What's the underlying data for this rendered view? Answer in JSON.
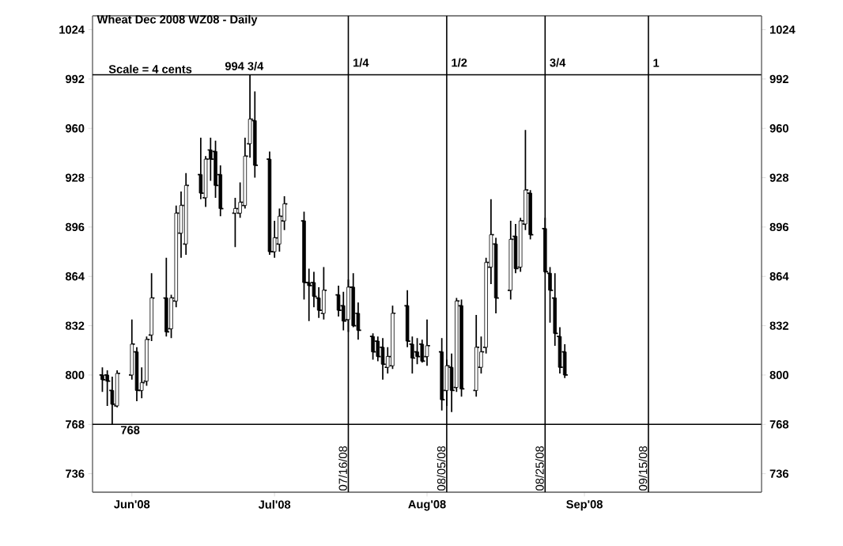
{
  "chart_data": {
    "type": "candlestick",
    "title": "Wheat Dec 2008 WZ08 - Daily",
    "color": "#000000",
    "annotations": [
      "Scale = 4 cents",
      {
        "text": "994 3/4",
        "x": "2008-06-20",
        "y": 994.75
      },
      {
        "text": "1/4",
        "x": "2008-07-16",
        "y": 997
      },
      {
        "text": "1/2",
        "x": "2008-08-05",
        "y": 997
      },
      {
        "text": "3/4",
        "x": "2008-08-25",
        "y": 997
      },
      {
        "text": "1",
        "x": "2008-09-15",
        "y": 997
      }
    ],
    "x": [
      "2008-05-27",
      "2008-05-28",
      "2008-05-29",
      "2008-05-30",
      "2008-06-02",
      "2008-06-03",
      "2008-06-04",
      "2008-06-05",
      "2008-06-06",
      "2008-06-09",
      "2008-06-10",
      "2008-06-11",
      "2008-06-12",
      "2008-06-13",
      "2008-06-16",
      "2008-06-17",
      "2008-06-18",
      "2008-06-19",
      "2008-06-20",
      "2008-06-23",
      "2008-06-24",
      "2008-06-25",
      "2008-06-26",
      "2008-06-27",
      "2008-06-30",
      "2008-07-01",
      "2008-07-02",
      "2008-07-03",
      "2008-07-07",
      "2008-07-08",
      "2008-07-09",
      "2008-07-10",
      "2008-07-11",
      "2008-07-14",
      "2008-07-15",
      "2008-07-16",
      "2008-07-17",
      "2008-07-18",
      "2008-07-21",
      "2008-07-22",
      "2008-07-23",
      "2008-07-24",
      "2008-07-25",
      "2008-07-28",
      "2008-07-29",
      "2008-07-30",
      "2008-07-31",
      "2008-08-01",
      "2008-08-04",
      "2008-08-05",
      "2008-08-06",
      "2008-08-07",
      "2008-08-08",
      "2008-08-11",
      "2008-08-12",
      "2008-08-13",
      "2008-08-14",
      "2008-08-15",
      "2008-08-18",
      "2008-08-19",
      "2008-08-20",
      "2008-08-21",
      "2008-08-22",
      "2008-08-25",
      "2008-08-26",
      "2008-08-27",
      "2008-08-28",
      "2008-08-29"
    ],
    "ohlc": [
      [
        800,
        805,
        789,
        797
      ],
      [
        800,
        803,
        780,
        796
      ],
      [
        790,
        799,
        768,
        781
      ],
      [
        780,
        803,
        779,
        801
      ],
      [
        800,
        836,
        797,
        820
      ],
      [
        815,
        818,
        783,
        790
      ],
      [
        790,
        805,
        785,
        795
      ],
      [
        796,
        825,
        793,
        823
      ],
      [
        826,
        866,
        822,
        850
      ],
      [
        850,
        876,
        825,
        828
      ],
      [
        830,
        852,
        824,
        850
      ],
      [
        848,
        910,
        844,
        905
      ],
      [
        892,
        919,
        876,
        910
      ],
      [
        885,
        931,
        878,
        923
      ],
      [
        930,
        954,
        914,
        918
      ],
      [
        915,
        942,
        909,
        940
      ],
      [
        946,
        954,
        926,
        940
      ],
      [
        945,
        952,
        915,
        923
      ],
      [
        930,
        936,
        903,
        908
      ],
      [
        905,
        915,
        883,
        908
      ],
      [
        905,
        925,
        902,
        912
      ],
      [
        910,
        954,
        908,
        942
      ],
      [
        950,
        994.75,
        941,
        966
      ],
      [
        965,
        984,
        928,
        936
      ],
      [
        940,
        945,
        878,
        880
      ],
      [
        880,
        900,
        876,
        889
      ],
      [
        885,
        908,
        880,
        903
      ],
      [
        900,
        916,
        894,
        911
      ],
      [
        900,
        906,
        849,
        860
      ],
      [
        860,
        869,
        835,
        858
      ],
      [
        860,
        867,
        844,
        851
      ],
      [
        850,
        857,
        837,
        842
      ],
      [
        840,
        870,
        836,
        855
      ],
      [
        852,
        858,
        838,
        842
      ],
      [
        845,
        854,
        829,
        835
      ],
      [
        836,
        862,
        828,
        857
      ],
      [
        857,
        866,
        831,
        832
      ],
      [
        840,
        847,
        823,
        829
      ],
      [
        825,
        827,
        810,
        815
      ],
      [
        822,
        825,
        809,
        812
      ],
      [
        818,
        824,
        797,
        807
      ],
      [
        805,
        818,
        801,
        812
      ],
      [
        806,
        845,
        804,
        840
      ],
      [
        845,
        855,
        818,
        822
      ],
      [
        820,
        825,
        801,
        811
      ],
      [
        815,
        824,
        807,
        812
      ],
      [
        820,
        823,
        808,
        809
      ],
      [
        812,
        836,
        806,
        819
      ],
      [
        815,
        824,
        777,
        784
      ],
      [
        790,
        810,
        780,
        806
      ],
      [
        805,
        814,
        776,
        790
      ],
      [
        792,
        850,
        789,
        848
      ],
      [
        845,
        849,
        786,
        791
      ],
      [
        790,
        839,
        786,
        818
      ],
      [
        805,
        825,
        801,
        815
      ],
      [
        818,
        876,
        814,
        873
      ],
      [
        870,
        914,
        859,
        891
      ],
      [
        885,
        889,
        840,
        850
      ],
      [
        855,
        900,
        849,
        888
      ],
      [
        890,
        898,
        866,
        869
      ],
      [
        870,
        902,
        867,
        900
      ],
      [
        898,
        959,
        894,
        920
      ],
      [
        918,
        920,
        888,
        891
      ],
      [
        895,
        902,
        866,
        867
      ],
      [
        866,
        870,
        834,
        855
      ],
      [
        850,
        866,
        819,
        827
      ],
      [
        825,
        831,
        801,
        805
      ],
      [
        815,
        820,
        798,
        800
      ]
    ],
    "xlim": [
      "2008-05-25",
      "2008-10-08"
    ],
    "xticks": [
      {
        "value": "2008-06-02",
        "label": "Jun'08"
      },
      {
        "value": "2008-07-01",
        "label": "Jul'08"
      },
      {
        "value": "2008-08-01",
        "label": "Aug'08"
      },
      {
        "value": "2008-09-02",
        "label": "Sep'08"
      }
    ],
    "ylim": [
      724,
      1033
    ],
    "yticks": [
      736,
      768,
      800,
      832,
      864,
      896,
      928,
      960,
      992,
      1024
    ],
    "y2lim": [
      724,
      1033
    ],
    "y2ticks": [
      736,
      768,
      800,
      832,
      864,
      896,
      928,
      960,
      992,
      1024
    ],
    "ref_lines": [
      {
        "axis": "y",
        "value": 994.75
      },
      {
        "axis": "y",
        "value": 768,
        "label": "768"
      },
      {
        "axis": "x",
        "value": "2008-07-16",
        "label": "07/16/08"
      },
      {
        "axis": "x",
        "value": "2008-08-05",
        "label": "08/05/08"
      },
      {
        "axis": "x",
        "value": "2008-08-25",
        "label": "08/25/08"
      },
      {
        "axis": "x",
        "value": "2008-09-15",
        "label": "09/15/08"
      }
    ]
  }
}
